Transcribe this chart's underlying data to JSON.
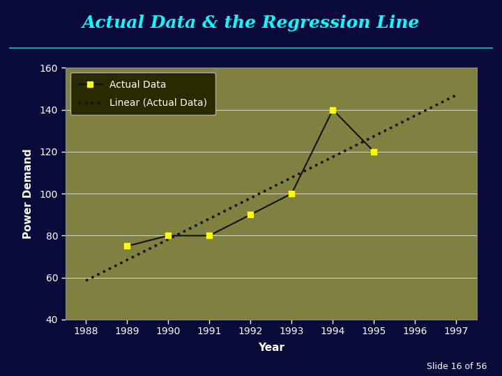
{
  "title": "Actual Data & the Regression Line",
  "title_color": "#00FFFF",
  "title_fontsize": 18,
  "background_color": "#0a0a3a",
  "plot_bg_color": "#808040",
  "xlabel": "Year",
  "ylabel": "Power Demand",
  "years": [
    1989,
    1990,
    1991,
    1992,
    1993,
    1994,
    1995
  ],
  "actual_data": [
    75,
    80,
    80,
    90,
    100,
    140,
    120
  ],
  "ylim": [
    40,
    160
  ],
  "xlim": [
    1988,
    1997
  ],
  "yticks": [
    40,
    60,
    80,
    100,
    120,
    140,
    160
  ],
  "xticks": [
    1988,
    1989,
    1990,
    1991,
    1992,
    1993,
    1994,
    1995,
    1996,
    1997
  ],
  "line_color": "#111111",
  "marker_color": "#FFFF00",
  "regression_color": "#111111",
  "legend_bg": "#2a2a00",
  "axis_label_fontsize": 11,
  "tick_label_fontsize": 10,
  "slide_note": "Slide 16 of 56"
}
